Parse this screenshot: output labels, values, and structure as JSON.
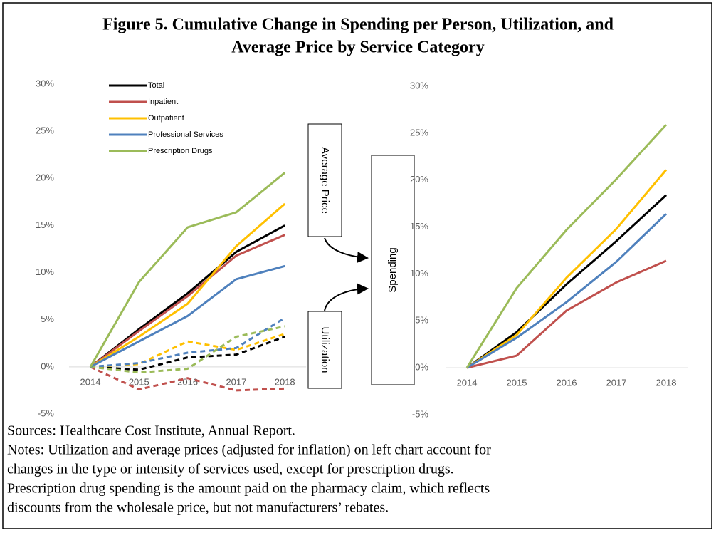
{
  "title": [
    "Figure 5. Cumulative Change in Spending per Person, Utilization, and",
    "Average Price by Service Category"
  ],
  "diagram": {
    "boxes": [
      "Average Price",
      "Utilization",
      "Spending"
    ]
  },
  "sources": "Sources: Healthcare Cost Institute, Annual Report.",
  "notes": [
    "Notes: Utilization and average prices (adjusted for inflation) on left chart account for",
    "changes in the type or intensity of services used, except for prescription drugs.",
    "Prescription drug spending is the amount paid on the pharmacy claim, which reflects",
    "discounts from the wholesale price, but not manufacturers’ rebates."
  ],
  "chart_data": [
    {
      "type": "line",
      "legend": true,
      "categories": [
        "2014",
        "2015",
        "2016",
        "2017",
        "2018"
      ],
      "ylim": [
        -5,
        30
      ],
      "yticks": [
        {
          "value": -5,
          "label": "-5%"
        },
        {
          "value": 0,
          "label": "0%"
        },
        {
          "value": 5,
          "label": "5%"
        },
        {
          "value": 10,
          "label": "10%"
        },
        {
          "value": 15,
          "label": "15%"
        },
        {
          "value": 20,
          "label": "20%"
        },
        {
          "value": 25,
          "label": "25%"
        },
        {
          "value": 30,
          "label": "30%"
        }
      ],
      "series": [
        {
          "name": "Total",
          "color": "#000000",
          "values": [
            0,
            4.0,
            7.8,
            12.2,
            15.0
          ]
        },
        {
          "name": "Inpatient",
          "color": "#c0504d",
          "values": [
            0,
            3.8,
            7.5,
            11.8,
            14.0
          ]
        },
        {
          "name": "Outpatient",
          "color": "#ffc000",
          "values": [
            0,
            3.2,
            6.7,
            12.8,
            17.3
          ]
        },
        {
          "name": "Professional Services",
          "color": "#4f81bd",
          "values": [
            0,
            2.7,
            5.4,
            9.3,
            10.7
          ]
        },
        {
          "name": "Prescription Drugs",
          "color": "#9bbb59",
          "values": [
            0,
            9.0,
            14.8,
            16.4,
            20.6
          ]
        }
      ],
      "dashed_series": [
        {
          "color": "#000000",
          "values": [
            0,
            -0.3,
            1.0,
            1.3,
            3.2
          ]
        },
        {
          "color": "#c0504d",
          "values": [
            0,
            -2.4,
            -1.2,
            -2.5,
            -2.3
          ]
        },
        {
          "color": "#ffc000",
          "values": [
            0,
            0.3,
            2.7,
            1.8,
            3.5
          ]
        },
        {
          "color": "#4f81bd",
          "values": [
            0,
            0.4,
            1.5,
            2.0,
            5.2
          ]
        },
        {
          "color": "#9bbb59",
          "values": [
            0,
            -0.6,
            -0.2,
            3.2,
            4.3
          ]
        }
      ]
    },
    {
      "type": "line",
      "legend": false,
      "categories": [
        "2014",
        "2015",
        "2016",
        "2017",
        "2018"
      ],
      "ylim": [
        -5,
        30
      ],
      "yticks": [
        {
          "value": -5,
          "label": "-5%"
        },
        {
          "value": 0,
          "label": "0%"
        },
        {
          "value": 5,
          "label": "5%"
        },
        {
          "value": 10,
          "label": "10%"
        },
        {
          "value": 15,
          "label": "15%"
        },
        {
          "value": 20,
          "label": "20%"
        },
        {
          "value": 25,
          "label": "25%"
        },
        {
          "value": 30,
          "label": "30%"
        }
      ],
      "series": [
        {
          "color": "#000000",
          "values": [
            0,
            3.8,
            8.9,
            13.5,
            18.4
          ]
        },
        {
          "color": "#c0504d",
          "values": [
            0,
            1.3,
            6.1,
            9.1,
            11.4
          ]
        },
        {
          "color": "#ffc000",
          "values": [
            0,
            3.5,
            9.6,
            14.8,
            21.1
          ]
        },
        {
          "color": "#4f81bd",
          "values": [
            0,
            3.2,
            7.0,
            11.3,
            16.4
          ]
        },
        {
          "color": "#9bbb59",
          "values": [
            0,
            8.5,
            14.7,
            20.1,
            25.9
          ]
        }
      ]
    }
  ]
}
